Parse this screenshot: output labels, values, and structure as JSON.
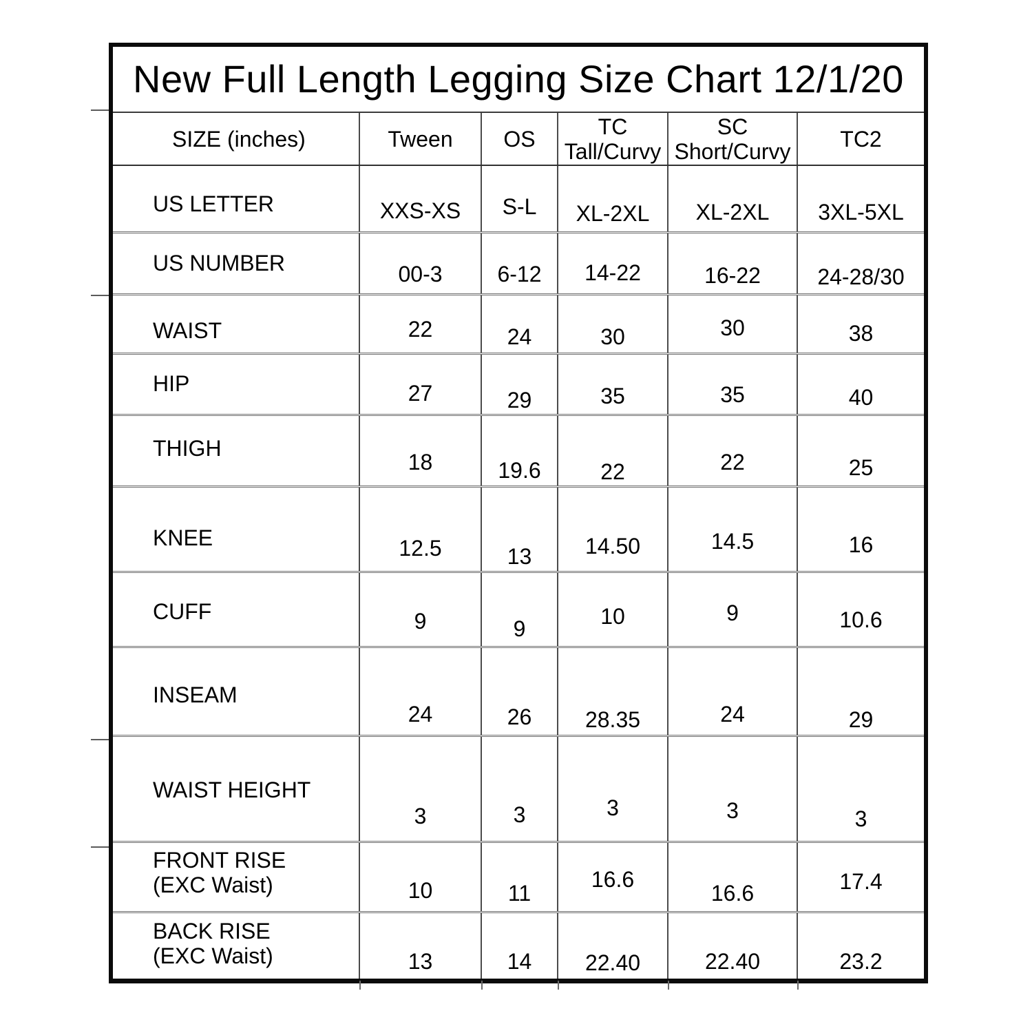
{
  "page": {
    "background": "#ffffff",
    "text_color": "#000000",
    "frame_border_color": "#0b0b0b",
    "grid_line_color": "#4a4a4a"
  },
  "chart_data": {
    "type": "table",
    "title": "New Full Length Legging Size Chart 12/1/20",
    "columns": [
      "SIZE (inches)",
      "Tween",
      "OS",
      "TC Tall/Curvy",
      "SC Short/Curvy",
      "TC2"
    ],
    "column_display": [
      "SIZE (inches)",
      "Tween",
      "OS",
      "TC\nTall/Curvy",
      "SC\nShort/Curvy",
      "TC2"
    ],
    "rows": [
      [
        "US LETTER",
        "XXS-XS",
        "S-L",
        "XL-2XL",
        "XL-2XL",
        "3XL-5XL"
      ],
      [
        "US NUMBER",
        "00-3",
        "6-12",
        "14-22",
        "16-22",
        "24-28/30"
      ],
      [
        "WAIST",
        "22",
        "24",
        "30",
        "30",
        "38"
      ],
      [
        "HIP",
        "27",
        "29",
        "35",
        "35",
        "40"
      ],
      [
        "THIGH",
        "18",
        "19.6",
        "22",
        "22",
        "25"
      ],
      [
        "KNEE",
        "12.5",
        "13",
        "14.50",
        "14.5",
        "16"
      ],
      [
        "CUFF",
        "9",
        "9",
        "10",
        "9",
        "10.6"
      ],
      [
        "INSEAM",
        "24",
        "26",
        "28.35",
        "24",
        "29"
      ],
      [
        "WAIST HEIGHT",
        "3",
        "3",
        "3",
        "3",
        "3"
      ],
      [
        "FRONT RISE\n(EXC Waist)",
        "10",
        "11",
        "16.6",
        "16.6",
        "17.4"
      ],
      [
        "BACK RISE\n(EXC Waist)",
        "13",
        "14",
        "22.40",
        "22.40",
        "23.2"
      ]
    ]
  }
}
